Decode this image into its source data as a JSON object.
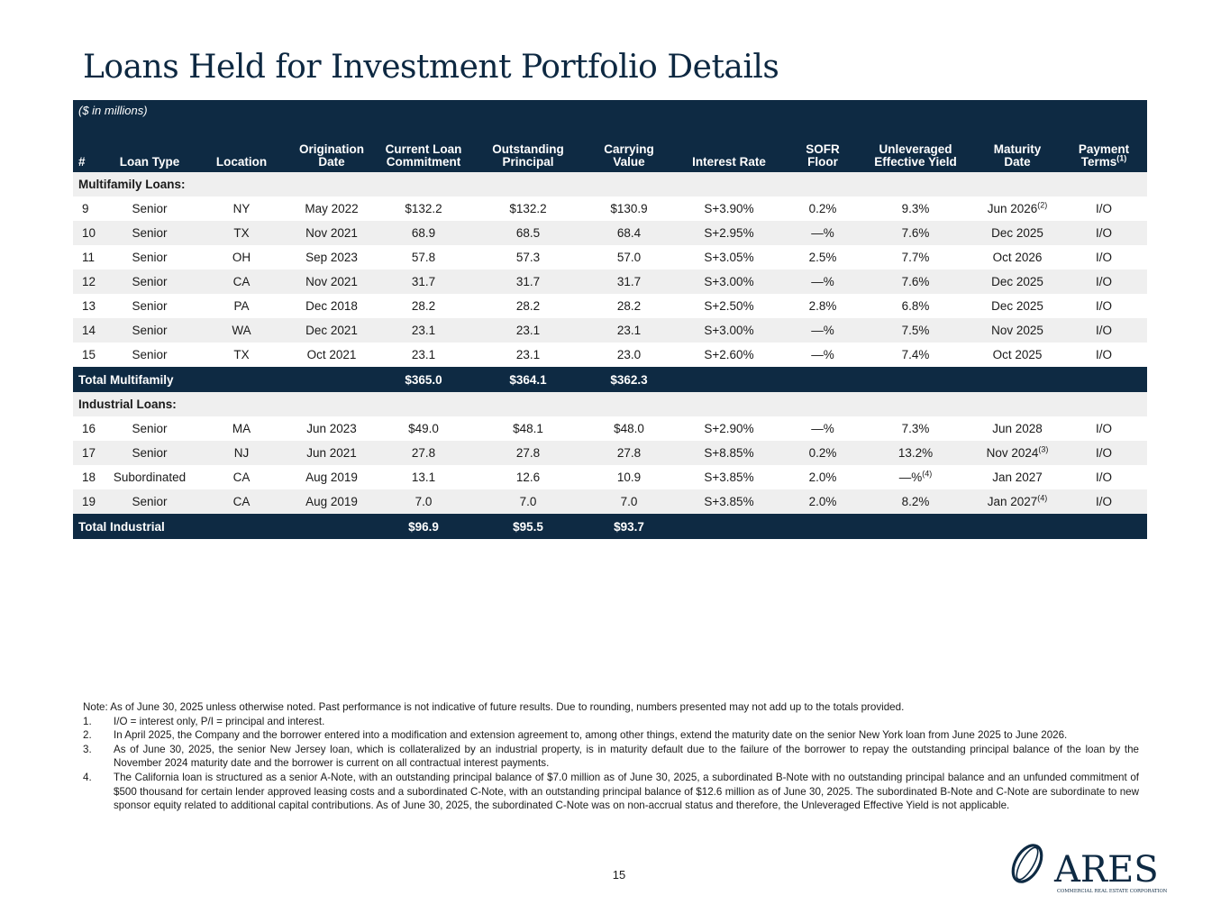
{
  "title": "Loans Held for Investment Portfolio Details",
  "units": "($ in millions)",
  "headers": {
    "num": "#",
    "loan_type": "Loan Type",
    "location": "Location",
    "orig_1": "Origination",
    "orig_2": "Date",
    "commit_1": "Current Loan",
    "commit_2": "Commitment",
    "outst_1": "Outstanding",
    "outst_2": "Principal",
    "carry_1": "Carrying",
    "carry_2": "Value",
    "rate": "Interest Rate",
    "sofr": "SOFR Floor",
    "yield_1": "Unleveraged",
    "yield_2": "Effective Yield",
    "mat_1": "Maturity",
    "mat_2": "Date",
    "pay_1": "Payment",
    "pay_2": "Terms",
    "pay_sup": "(1)"
  },
  "multifamily": {
    "section_label": "Multifamily Loans:",
    "rows": [
      {
        "num": "9",
        "type": "Senior",
        "loc": "NY",
        "orig": "May 2022",
        "commit": "$132.2",
        "outst": "$132.2",
        "carry": "$130.9",
        "rate": "S+3.90%",
        "sofr": "0.2%",
        "yield": "9.3%",
        "yield_sup": "",
        "mat": "Jun 2026",
        "mat_sup": "(2)",
        "pay": "I/O"
      },
      {
        "num": "10",
        "type": "Senior",
        "loc": "TX",
        "orig": "Nov 2021",
        "commit": "68.9",
        "outst": "68.5",
        "carry": "68.4",
        "rate": "S+2.95%",
        "sofr": "—%",
        "yield": "7.6%",
        "yield_sup": "",
        "mat": "Dec 2025",
        "mat_sup": "",
        "pay": "I/O"
      },
      {
        "num": "11",
        "type": "Senior",
        "loc": "OH",
        "orig": "Sep 2023",
        "commit": "57.8",
        "outst": "57.3",
        "carry": "57.0",
        "rate": "S+3.05%",
        "sofr": "2.5%",
        "yield": "7.7%",
        "yield_sup": "",
        "mat": "Oct 2026",
        "mat_sup": "",
        "pay": "I/O"
      },
      {
        "num": "12",
        "type": "Senior",
        "loc": "CA",
        "orig": "Nov 2021",
        "commit": "31.7",
        "outst": "31.7",
        "carry": "31.7",
        "rate": "S+3.00%",
        "sofr": "—%",
        "yield": "7.6%",
        "yield_sup": "",
        "mat": "Dec 2025",
        "mat_sup": "",
        "pay": "I/O"
      },
      {
        "num": "13",
        "type": "Senior",
        "loc": "PA",
        "orig": "Dec 2018",
        "commit": "28.2",
        "outst": "28.2",
        "carry": "28.2",
        "rate": "S+2.50%",
        "sofr": "2.8%",
        "yield": "6.8%",
        "yield_sup": "",
        "mat": "Dec 2025",
        "mat_sup": "",
        "pay": "I/O"
      },
      {
        "num": "14",
        "type": "Senior",
        "loc": "WA",
        "orig": "Dec 2021",
        "commit": "23.1",
        "outst": "23.1",
        "carry": "23.1",
        "rate": "S+3.00%",
        "sofr": "—%",
        "yield": "7.5%",
        "yield_sup": "",
        "mat": "Nov 2025",
        "mat_sup": "",
        "pay": "I/O"
      },
      {
        "num": "15",
        "type": "Senior",
        "loc": "TX",
        "orig": "Oct 2021",
        "commit": "23.1",
        "outst": "23.1",
        "carry": "23.0",
        "rate": "S+2.60%",
        "sofr": "—%",
        "yield": "7.4%",
        "yield_sup": "",
        "mat": "Oct 2025",
        "mat_sup": "",
        "pay": "I/O"
      }
    ],
    "total": {
      "label": "Total Multifamily",
      "commit": "$365.0",
      "outst": "$364.1",
      "carry": "$362.3"
    }
  },
  "industrial": {
    "section_label": "Industrial Loans:",
    "rows": [
      {
        "num": "16",
        "type": "Senior",
        "loc": "MA",
        "orig": "Jun 2023",
        "commit": "$49.0",
        "outst": "$48.1",
        "carry": "$48.0",
        "rate": "S+2.90%",
        "sofr": "—%",
        "yield": "7.3%",
        "yield_sup": "",
        "mat": "Jun 2028",
        "mat_sup": "",
        "pay": "I/O"
      },
      {
        "num": "17",
        "type": "Senior",
        "loc": "NJ",
        "orig": "Jun 2021",
        "commit": "27.8",
        "outst": "27.8",
        "carry": "27.8",
        "rate": "S+8.85%",
        "sofr": "0.2%",
        "yield": "13.2%",
        "yield_sup": "",
        "mat": "Nov 2024",
        "mat_sup": "(3)",
        "pay": "I/O"
      },
      {
        "num": "18",
        "type": "Subordinated",
        "loc": "CA",
        "orig": "Aug 2019",
        "commit": "13.1",
        "outst": "12.6",
        "carry": "10.9",
        "rate": "S+3.85%",
        "sofr": "2.0%",
        "yield": "—%",
        "yield_sup": "(4)",
        "mat": "Jan 2027",
        "mat_sup": "",
        "pay": "I/O"
      },
      {
        "num": "19",
        "type": "Senior",
        "loc": "CA",
        "orig": "Aug 2019",
        "commit": "7.0",
        "outst": "7.0",
        "carry": "7.0",
        "rate": "S+3.85%",
        "sofr": "2.0%",
        "yield": "8.2%",
        "yield_sup": "",
        "mat": "Jan 2027",
        "mat_sup": "(4)",
        "pay": "I/O"
      }
    ],
    "total": {
      "label": "Total Industrial",
      "commit": "$96.9",
      "outst": "$95.5",
      "carry": "$93.7"
    }
  },
  "notes": {
    "intro": "Note: As of June 30, 2025 unless otherwise noted. Past performance is not indicative of future results. Due to rounding, numbers presented may not add up to the totals provided.",
    "items": [
      {
        "n": "1.",
        "text": "I/O = interest only, P/I = principal and interest."
      },
      {
        "n": "2.",
        "text": "In April 2025, the Company and the borrower entered into a modification and extension agreement to, among other things, extend the maturity date on the senior New York loan from June 2025 to June 2026."
      },
      {
        "n": "3.",
        "text": "As of June 30, 2025, the senior New Jersey loan, which is collateralized by an industrial property, is in maturity default due to the failure of the borrower to repay the outstanding principal balance of the loan by the November 2024 maturity date and the borrower is current on all contractual interest payments."
      },
      {
        "n": "4.",
        "text": "The California loan is structured as a senior A-Note, with an outstanding principal balance of $7.0 million as of June 30, 2025, a subordinated B-Note with no outstanding principal balance and an unfunded commitment of $500 thousand for certain lender approved leasing costs and a subordinated C-Note, with an outstanding principal balance of $12.6 million as of June 30, 2025. The subordinated B-Note and C-Note are subordinate to new sponsor equity related to additional capital contributions. As of June 30, 2025, the subordinated C-Note was on non-accrual status and therefore, the Unleveraged Effective Yield is not applicable."
      }
    ]
  },
  "page_number": "15",
  "logo": {
    "name": "ARES",
    "tagline": "COMMERCIAL REAL ESTATE CORPORATION",
    "color": "#0e2a43"
  }
}
